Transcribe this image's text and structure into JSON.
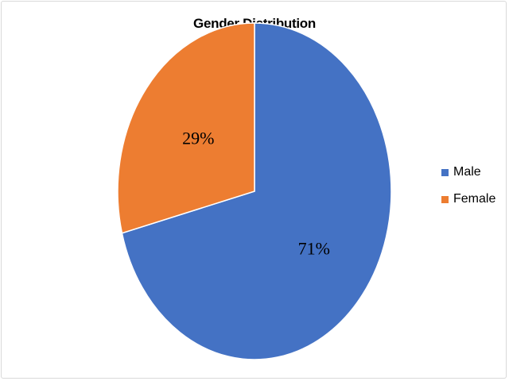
{
  "chart_data": {
    "type": "pie",
    "title": "Gender Distribution",
    "categories": [
      "Male",
      "Female"
    ],
    "values": [
      71,
      29
    ],
    "labels": [
      "71%",
      "29%"
    ],
    "colors": [
      "#4472C4",
      "#ED7D31"
    ],
    "legend_position": "right"
  }
}
